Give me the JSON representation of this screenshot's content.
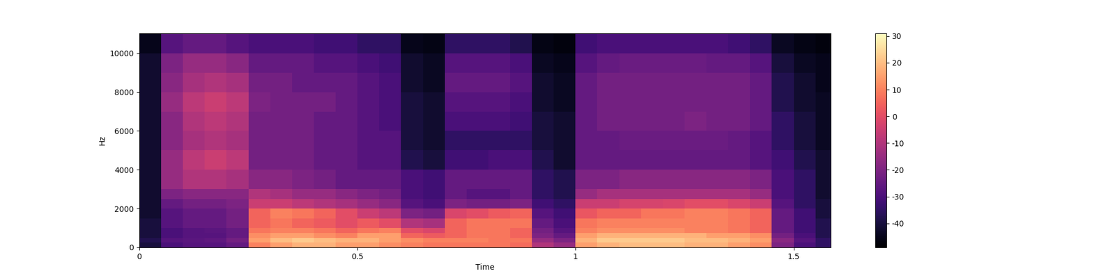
{
  "chart_data": {
    "type": "heatmap",
    "x_label": "Time",
    "y_label": "Hz",
    "x_edges": [
      0,
      0.05,
      0.1,
      0.15,
      0.2,
      0.25,
      0.3,
      0.35,
      0.4,
      0.45,
      0.5,
      0.55,
      0.6,
      0.65,
      0.7,
      0.75,
      0.8,
      0.85,
      0.9,
      0.95,
      1.0,
      1.05,
      1.1,
      1.15,
      1.2,
      1.25,
      1.3,
      1.35,
      1.4,
      1.45,
      1.5,
      1.55,
      1.6
    ],
    "y_edges": [
      0,
      250,
      500,
      750,
      1000,
      1500,
      2000,
      2500,
      3000,
      4000,
      5000,
      6000,
      7000,
      8000,
      9000,
      10000,
      11025
    ],
    "cells": [
      [
        -40,
        -30,
        -28,
        -28,
        -25,
        10,
        15,
        18,
        18,
        15,
        15,
        12,
        10,
        8,
        8,
        8,
        8,
        6,
        -10,
        -15,
        15,
        18,
        20,
        20,
        20,
        18,
        18,
        15,
        12,
        -20,
        -30,
        -35
      ],
      [
        -38,
        -28,
        -27,
        -26,
        -22,
        15,
        20,
        22,
        20,
        18,
        18,
        15,
        12,
        10,
        10,
        10,
        8,
        8,
        -15,
        -20,
        18,
        22,
        22,
        22,
        22,
        20,
        20,
        18,
        15,
        -18,
        -28,
        -35
      ],
      [
        -40,
        -30,
        -28,
        -28,
        -25,
        12,
        15,
        15,
        12,
        10,
        15,
        15,
        5,
        3,
        5,
        8,
        8,
        5,
        -20,
        -25,
        15,
        18,
        18,
        18,
        18,
        18,
        15,
        15,
        12,
        -22,
        -30,
        -38
      ],
      [
        -40,
        -30,
        -28,
        -27,
        -25,
        8,
        10,
        10,
        8,
        5,
        8,
        10,
        0,
        -2,
        5,
        8,
        8,
        5,
        -22,
        -28,
        10,
        12,
        12,
        12,
        12,
        10,
        10,
        8,
        5,
        -25,
        -32,
        -38
      ],
      [
        -40,
        -28,
        -25,
        -25,
        -22,
        5,
        8,
        5,
        3,
        0,
        3,
        0,
        -10,
        -12,
        5,
        8,
        8,
        8,
        -25,
        -30,
        8,
        10,
        10,
        10,
        10,
        10,
        10,
        8,
        5,
        -25,
        -32,
        -38
      ],
      [
        -42,
        -28,
        -25,
        -25,
        -22,
        5,
        10,
        8,
        5,
        0,
        -5,
        -8,
        -20,
        -22,
        -2,
        0,
        3,
        5,
        -28,
        -32,
        2,
        5,
        5,
        8,
        8,
        10,
        10,
        8,
        5,
        -25,
        -32,
        -40
      ],
      [
        -42,
        -25,
        -22,
        -22,
        -20,
        -5,
        -5,
        -8,
        -10,
        -12,
        -15,
        -18,
        -28,
        -30,
        -20,
        -22,
        -22,
        -20,
        -32,
        -35,
        -5,
        -5,
        -3,
        -3,
        -2,
        0,
        0,
        -2,
        -5,
        -28,
        -35,
        -40
      ],
      [
        -42,
        -20,
        -18,
        -18,
        -18,
        -10,
        -12,
        -15,
        -15,
        -18,
        -20,
        -22,
        -30,
        -32,
        -25,
        -28,
        -28,
        -25,
        -35,
        -38,
        -15,
        -12,
        -12,
        -12,
        -12,
        -12,
        -12,
        -12,
        -15,
        -30,
        -35,
        -42
      ],
      [
        -42,
        -15,
        -10,
        -10,
        -12,
        -18,
        -18,
        -20,
        -22,
        -25,
        -25,
        -25,
        -30,
        -32,
        -25,
        -25,
        -25,
        -25,
        -35,
        -38,
        -20,
        -20,
        -18,
        -18,
        -18,
        -18,
        -18,
        -18,
        -20,
        -30,
        -35,
        -42
      ],
      [
        -42,
        -15,
        -8,
        -5,
        -8,
        -22,
        -22,
        -22,
        -25,
        -25,
        -28,
        -28,
        -38,
        -40,
        -32,
        -32,
        -30,
        -30,
        -38,
        -42,
        -25,
        -25,
        -25,
        -25,
        -25,
        -25,
        -25,
        -25,
        -28,
        -32,
        -38,
        -42
      ],
      [
        -42,
        -18,
        -12,
        -10,
        -12,
        -22,
        -22,
        -22,
        -25,
        -25,
        -28,
        -28,
        -40,
        -42,
        -35,
        -35,
        -35,
        -35,
        -40,
        -42,
        -25,
        -25,
        -24,
        -24,
        -24,
        -24,
        -24,
        -25,
        -28,
        -35,
        -40,
        -44
      ],
      [
        -42,
        -18,
        -10,
        -8,
        -10,
        -22,
        -22,
        -22,
        -25,
        -25,
        -28,
        -30,
        -40,
        -42,
        -30,
        -30,
        -30,
        -32,
        -40,
        -42,
        -25,
        -22,
        -22,
        -22,
        -22,
        -20,
        -22,
        -22,
        -25,
        -35,
        -40,
        -44
      ],
      [
        -42,
        -15,
        -8,
        -5,
        -8,
        -20,
        -22,
        -22,
        -22,
        -25,
        -28,
        -30,
        -40,
        -42,
        -28,
        -28,
        -28,
        -30,
        -42,
        -44,
        -25,
        -22,
        -22,
        -22,
        -22,
        -22,
        -22,
        -22,
        -25,
        -38,
        -42,
        -44
      ],
      [
        -42,
        -18,
        -12,
        -10,
        -12,
        -22,
        -22,
        -25,
        -25,
        -25,
        -28,
        -30,
        -42,
        -44,
        -25,
        -25,
        -25,
        -28,
        -42,
        -44,
        -25,
        -22,
        -22,
        -22,
        -22,
        -22,
        -22,
        -22,
        -25,
        -38,
        -42,
        -45
      ],
      [
        -42,
        -20,
        -15,
        -15,
        -18,
        -25,
        -25,
        -25,
        -28,
        -28,
        -30,
        -32,
        -42,
        -44,
        -28,
        -28,
        -28,
        -30,
        -44,
        -45,
        -28,
        -25,
        -24,
        -24,
        -24,
        -24,
        -25,
        -25,
        -28,
        -40,
        -44,
        -45
      ],
      [
        -45,
        -28,
        -25,
        -25,
        -28,
        -30,
        -30,
        -30,
        -32,
        -32,
        -35,
        -35,
        -45,
        -46,
        -35,
        -35,
        -35,
        -38,
        -46,
        -47,
        -32,
        -30,
        -30,
        -30,
        -30,
        -30,
        -30,
        -32,
        -35,
        -44,
        -46,
        -47
      ]
    ],
    "xlim": [
      0,
      1.585
    ],
    "ylim": [
      0,
      11025
    ],
    "xticks": [
      0,
      0.5,
      1,
      1.5
    ],
    "yticks": [
      0,
      2000,
      4000,
      6000,
      8000,
      10000
    ],
    "color_range": [
      -49,
      31
    ],
    "color_ticks": [
      -40,
      -30,
      -20,
      -10,
      0,
      10,
      20,
      30
    ]
  }
}
